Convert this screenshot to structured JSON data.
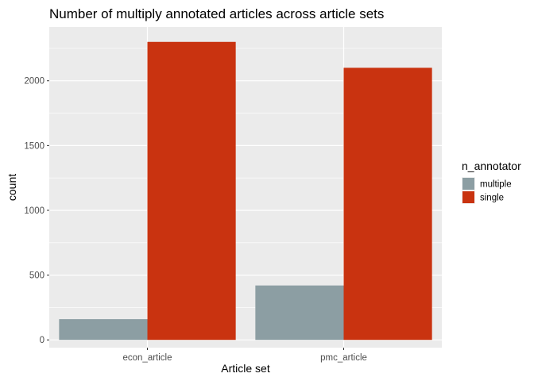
{
  "chart_data": {
    "type": "bar",
    "title": "Number of multiply annotated articles across article sets",
    "xlabel": "Article set",
    "ylabel": "count",
    "categories": [
      "econ_article",
      "pmc_article"
    ],
    "series": [
      {
        "name": "multiple",
        "color": "#8c9ea3",
        "values": [
          160,
          420
        ]
      },
      {
        "name": "single",
        "color": "#c93310",
        "values": [
          2300,
          2100
        ]
      }
    ],
    "ylim": [
      -60,
      2415
    ],
    "yticks": [
      0,
      500,
      1000,
      1500,
      2000
    ],
    "grid": true,
    "legend": {
      "title": "n_annotator",
      "position": "right"
    },
    "panel_background": "#ebebeb"
  }
}
